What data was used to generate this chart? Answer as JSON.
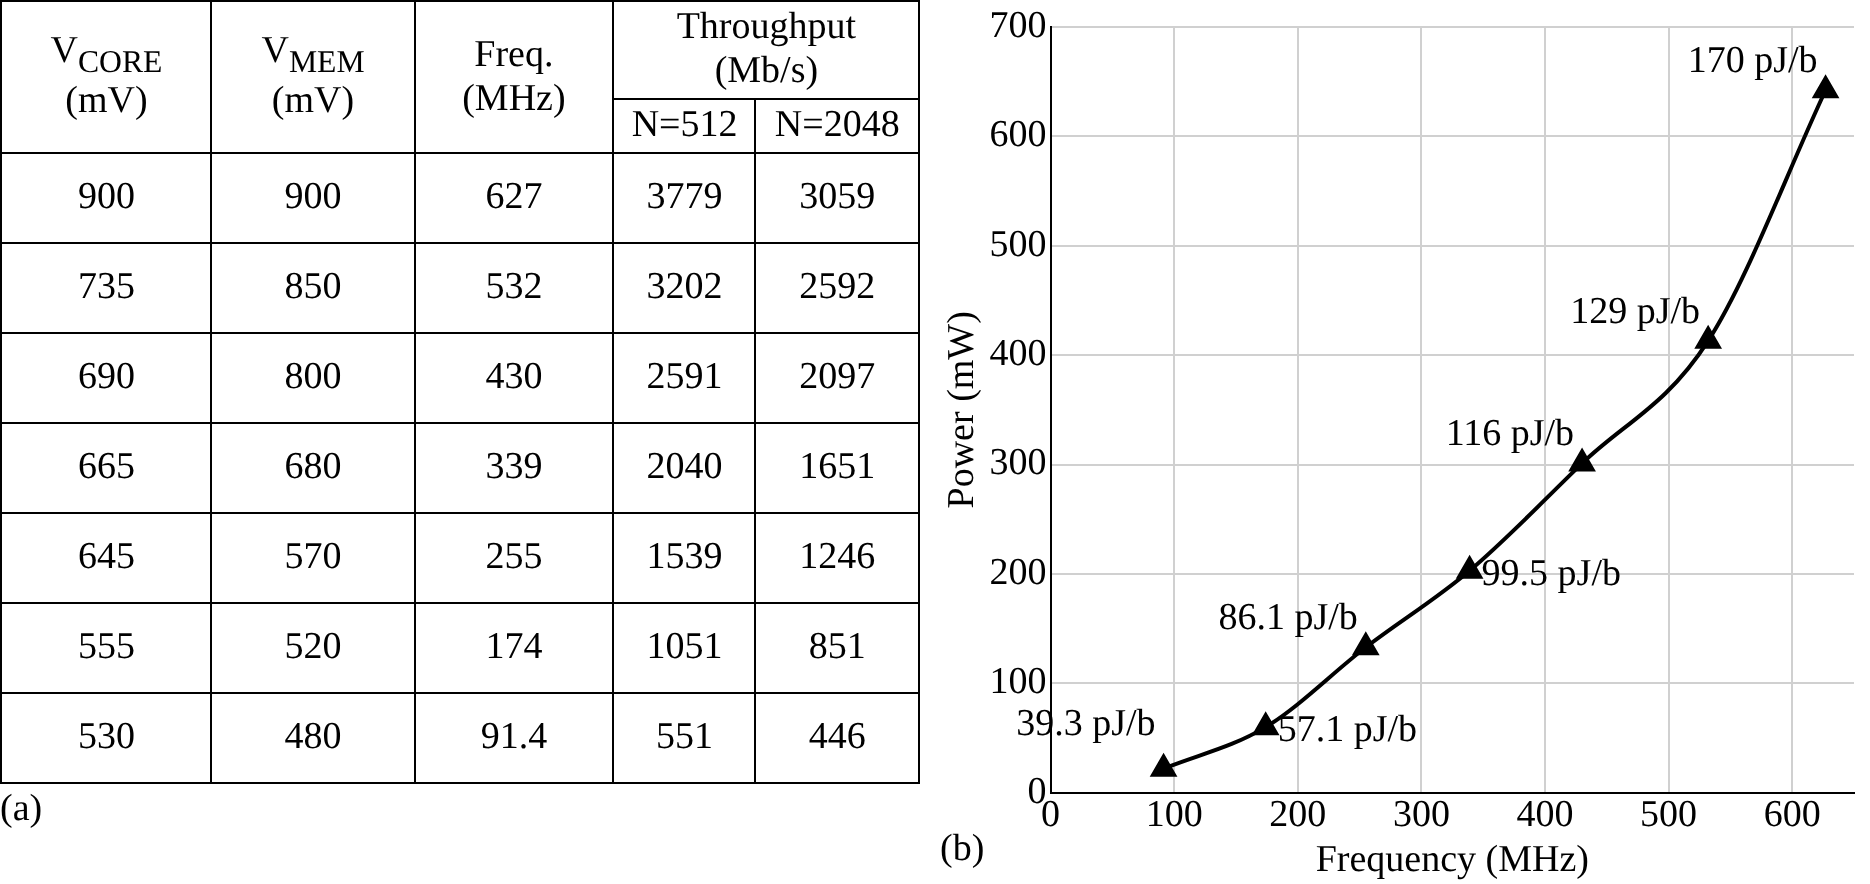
{
  "chart_data": [
    {
      "type": "other",
      "categories": [
        "V$_{CORE}$ (mV)",
        "V$_{MEM}$ (mV)",
        "Freq. (MHz)",
        "N=512",
        "N=2048"
      ],
      "annotations": [
        "Throughput (Mb/s)",
        "(a)",
        "900",
        "900",
        "627",
        "3779",
        "3059",
        "735",
        "850",
        "532",
        "3202",
        "2592",
        "690",
        "800",
        "430",
        "2591",
        "2097",
        "665",
        "680",
        "339",
        "2040",
        "1651",
        "645",
        "570",
        "255",
        "1539",
        "1246",
        "555",
        "520",
        "174",
        "1051",
        "851",
        "530",
        "480",
        "91.4",
        "551",
        "446"
      ]
    },
    {
      "type": "line",
      "x": [
        91.4,
        174,
        255,
        339,
        430,
        532,
        627
      ],
      "values": [
        22,
        60,
        133,
        203,
        301,
        413,
        642
      ],
      "color": "#000000",
      "marker": "triangle",
      "xlabel": "Frequency (MHz)",
      "ylabel": "Power (mW)",
      "xlim": [
        0,
        650
      ],
      "ylim": [
        0,
        700
      ],
      "xticks": [
        0,
        100,
        200,
        300,
        400,
        500,
        600
      ],
      "yticks": [
        0,
        100,
        200,
        300,
        400,
        500,
        600,
        700
      ],
      "grid": true,
      "annotations": [
        {
          "text": "39.3 pJ/b",
          "x": 91.4,
          "y": 22
        },
        {
          "text": "57.1 pJ/b",
          "x": 174,
          "y": 60
        },
        {
          "text": "86.1 pJ/b",
          "x": 255,
          "y": 133
        },
        {
          "text": "99.5 pJ/b",
          "x": 339,
          "y": 203
        },
        {
          "text": "116 pJ/b",
          "x": 430,
          "y": 301
        },
        {
          "text": "129 pJ/b",
          "x": 532,
          "y": 413
        },
        {
          "text": "170 pJ/b",
          "x": 627,
          "y": 642
        },
        "(b)"
      ]
    }
  ]
}
